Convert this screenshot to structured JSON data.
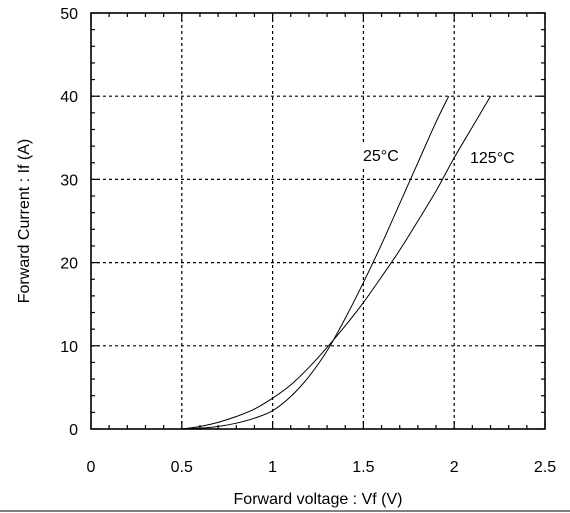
{
  "chart_data": {
    "type": "line",
    "xlabel": "Forward voltage : Vf (V)",
    "ylabel": "Forward Current : If (A)",
    "xlim": [
      0,
      2.5
    ],
    "ylim": [
      0,
      50
    ],
    "x_ticks": [
      0,
      0.5,
      1,
      1.5,
      2,
      2.5
    ],
    "y_ticks": [
      0,
      10,
      20,
      30,
      40,
      50
    ],
    "x_tick_labels": [
      "0",
      "0.5",
      "1",
      "1.5",
      "2",
      "2.5"
    ],
    "y_tick_labels": [
      "0",
      "10",
      "20",
      "30",
      "40",
      "50"
    ],
    "grid": true,
    "series": [
      {
        "name": "25°C",
        "x": [
          0.5,
          0.6,
          0.7,
          0.8,
          0.9,
          1.0,
          1.1,
          1.2,
          1.3,
          1.4,
          1.5,
          1.6,
          1.7,
          1.8,
          1.9,
          1.97
        ],
        "y": [
          0,
          0.1,
          0.3,
          0.7,
          1.3,
          2.2,
          3.9,
          6.3,
          9.4,
          13.3,
          17.6,
          22.2,
          27.1,
          32.0,
          36.9,
          40
        ]
      },
      {
        "name": "125°C",
        "x": [
          0.5,
          0.6,
          0.7,
          0.8,
          0.9,
          1.0,
          1.1,
          1.2,
          1.3,
          1.4,
          1.5,
          1.6,
          1.7,
          1.8,
          1.9,
          2.0,
          2.1,
          2.2
        ],
        "y": [
          0,
          0.3,
          0.8,
          1.5,
          2.4,
          3.7,
          5.3,
          7.4,
          9.8,
          12.4,
          15.2,
          18.3,
          21.5,
          25.0,
          28.6,
          32.6,
          36.3,
          40
        ]
      }
    ],
    "annotations": [
      {
        "text": "25°C",
        "series": 0
      },
      {
        "text": "125°C",
        "series": 1
      }
    ]
  }
}
